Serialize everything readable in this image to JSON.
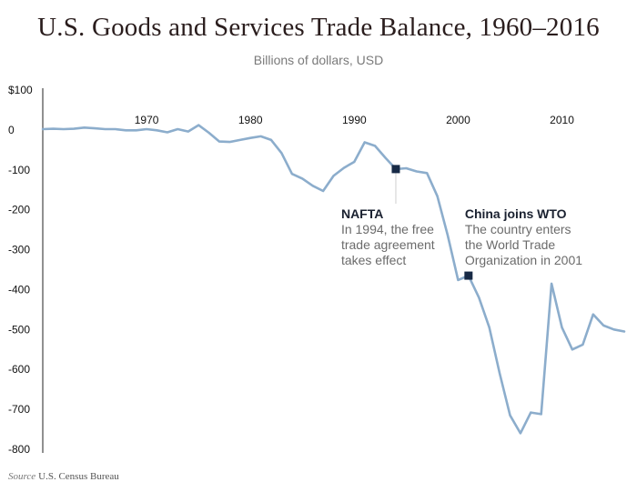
{
  "chart_data": {
    "type": "line",
    "title": "U.S. Goods and Services Trade Balance, 1960–2016",
    "subtitle": "Billions of dollars, USD",
    "source_label": "Source",
    "source_text": "U.S. Census Bureau",
    "xlabel": "",
    "ylabel": "",
    "xlim": [
      1960,
      2016
    ],
    "ylim": [
      -800,
      100
    ],
    "y_ticks": [
      100,
      0,
      -100,
      -200,
      -300,
      -400,
      -500,
      -600,
      -700,
      -800
    ],
    "y_tick_labels": [
      "$100",
      "0",
      "-100",
      "-200",
      "-300",
      "-400",
      "-500",
      "-600",
      "-700",
      "-800"
    ],
    "x_ticks": [
      1970,
      1980,
      1990,
      2000,
      2010
    ],
    "x_tick_labels": [
      "1970",
      "1980",
      "1990",
      "2000",
      "2010"
    ],
    "grid": false,
    "line_color": "#8cadcc",
    "marker_color": "#172a46",
    "series": [
      {
        "name": "",
        "x": [
          1960,
          1961,
          1962,
          1963,
          1964,
          1965,
          1966,
          1967,
          1968,
          1969,
          1970,
          1971,
          1972,
          1973,
          1974,
          1975,
          1976,
          1977,
          1978,
          1979,
          1980,
          1981,
          1982,
          1983,
          1984,
          1985,
          1986,
          1987,
          1988,
          1989,
          1990,
          1991,
          1992,
          1993,
          1994,
          1995,
          1996,
          1997,
          1998,
          1999,
          2000,
          2001,
          2002,
          2003,
          2004,
          2005,
          2006,
          2007,
          2008,
          2009,
          2010,
          2011,
          2012,
          2013,
          2014,
          2015,
          2016
        ],
        "y": [
          2,
          3,
          2,
          3,
          6,
          4,
          2,
          2,
          -1,
          -1,
          2,
          -1,
          -6,
          2,
          -4,
          12,
          -7,
          -29,
          -30,
          -25,
          -20,
          -16,
          -25,
          -58,
          -110,
          -122,
          -140,
          -153,
          -115,
          -95,
          -80,
          -31,
          -40,
          -70,
          -98,
          -96,
          -104,
          -108,
          -166,
          -264,
          -376,
          -365,
          -420,
          -495,
          -610,
          -715,
          -760,
          -708,
          -712,
          -385,
          -495,
          -550,
          -538,
          -462,
          -490,
          -500,
          -505
        ]
      }
    ],
    "annotations": [
      {
        "x": 1994,
        "y": -98,
        "title": "NAFTA",
        "lines": [
          "In 1994, the free",
          "trade agreement",
          "takes effect"
        ]
      },
      {
        "x": 2001,
        "y": -365,
        "title": "China joins WTO",
        "lines": [
          "The country enters",
          "the World Trade",
          "Organization in 2001"
        ]
      }
    ]
  }
}
